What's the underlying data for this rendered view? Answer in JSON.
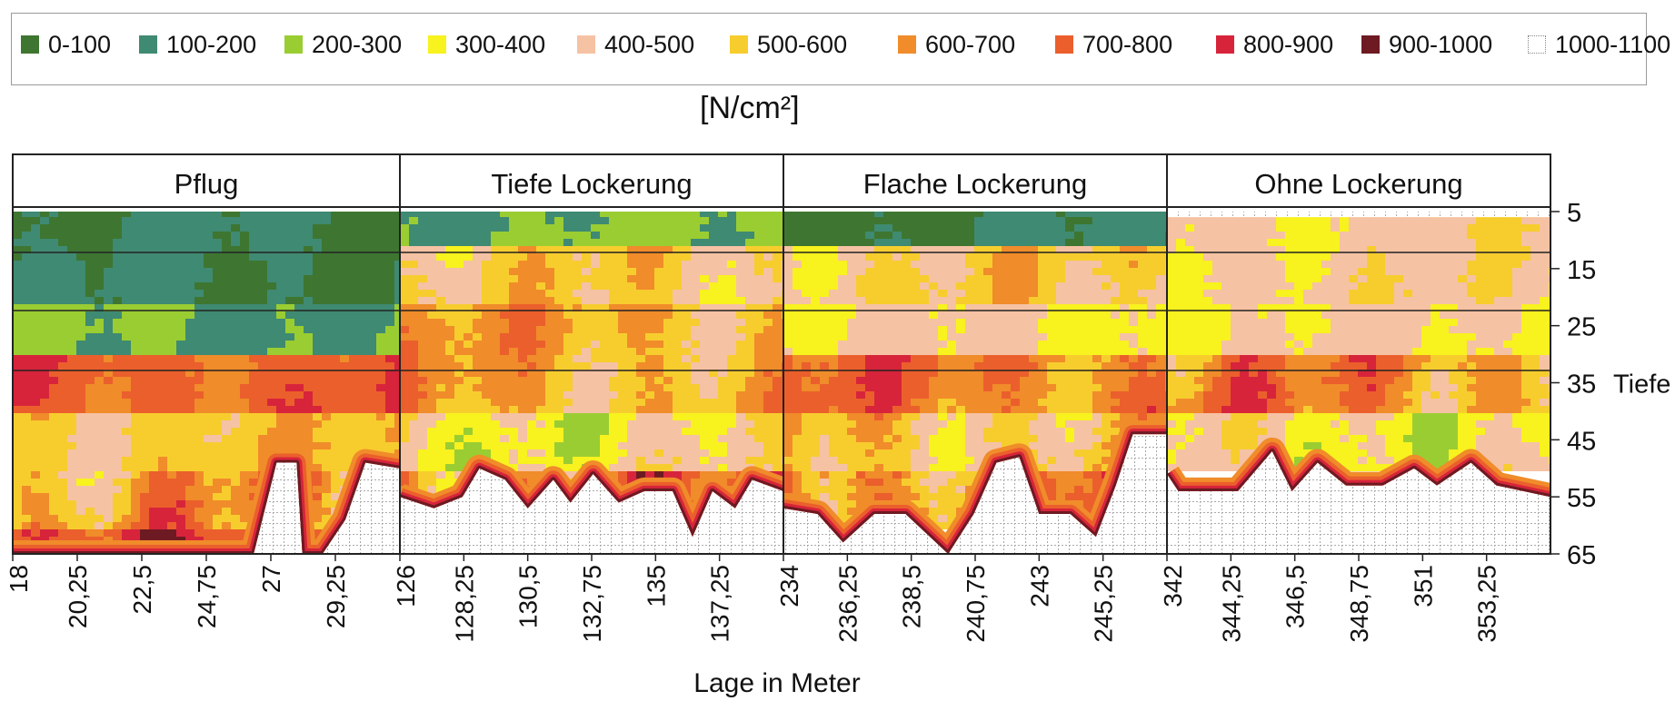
{
  "legend": {
    "title": "[N/cm²]",
    "items": [
      {
        "label": "0-100",
        "color": "#3e7631"
      },
      {
        "label": "100-200",
        "color": "#3f8a72"
      },
      {
        "label": "200-300",
        "color": "#9acd32"
      },
      {
        "label": "300-400",
        "color": "#f8f21e"
      },
      {
        "label": "400-500",
        "color": "#f6c2a4"
      },
      {
        "label": "500-600",
        "color": "#f7cd2e"
      },
      {
        "label": "600-700",
        "color": "#f08c2a"
      },
      {
        "label": "700-800",
        "color": "#eb5f2c"
      },
      {
        "label": "800-900",
        "color": "#d7243b"
      },
      {
        "label": "900-1000",
        "color": "#6e1a22"
      },
      {
        "label": "1000-1100",
        "color": "#ffffff"
      }
    ]
  },
  "chart_data": {
    "type": "heatmap",
    "title": "",
    "xlabel": "Lage in Meter",
    "ylabel": "Tiefe",
    "y_ticks": [
      "5",
      "15",
      "25",
      "35",
      "45",
      "55",
      "65"
    ],
    "sections": [
      {
        "name": "Pflug",
        "x_labels": [
          "18",
          "20,25",
          "22,5",
          "24,75",
          "27",
          "29,25"
        ],
        "x_range": [
          18,
          31.5
        ],
        "surface": [
          {
            "x": 18,
            "depth": 5
          },
          {
            "x": 31.5,
            "depth": 5
          }
        ],
        "soil_bottom": [
          {
            "x": 18,
            "depth": 65
          },
          {
            "x": 26.4,
            "depth": 65
          },
          {
            "x": 27.2,
            "depth": 49
          },
          {
            "x": 27.9,
            "depth": 49
          },
          {
            "x": 28.1,
            "depth": 65
          },
          {
            "x": 28.8,
            "depth": 65
          },
          {
            "x": 29.6,
            "depth": 59
          },
          {
            "x": 30.3,
            "depth": 49
          },
          {
            "x": 31.5,
            "depth": 50
          }
        ]
      },
      {
        "name": "Tiefe Lockerung",
        "x_labels": [
          "126",
          "128,25",
          "130,5",
          "132,75",
          "135",
          "137,25"
        ],
        "x_range": [
          126,
          139.5
        ],
        "surface": [
          {
            "x": 126,
            "depth": 5
          },
          {
            "x": 139.5,
            "depth": 5
          }
        ],
        "soil_bottom": [
          {
            "x": 126,
            "depth": 55
          },
          {
            "x": 127.2,
            "depth": 57
          },
          {
            "x": 128.2,
            "depth": 55
          },
          {
            "x": 128.8,
            "depth": 50
          },
          {
            "x": 129.7,
            "depth": 52
          },
          {
            "x": 130.5,
            "depth": 57
          },
          {
            "x": 131.4,
            "depth": 52
          },
          {
            "x": 132,
            "depth": 56
          },
          {
            "x": 132.8,
            "depth": 51
          },
          {
            "x": 133.7,
            "depth": 56
          },
          {
            "x": 134.6,
            "depth": 54
          },
          {
            "x": 135.6,
            "depth": 54
          },
          {
            "x": 136.3,
            "depth": 62
          },
          {
            "x": 137,
            "depth": 54
          },
          {
            "x": 137.8,
            "depth": 57
          },
          {
            "x": 138.4,
            "depth": 52
          },
          {
            "x": 139.5,
            "depth": 54
          }
        ]
      },
      {
        "name": "Flache Lockerung",
        "x_labels": [
          "234",
          "236,25",
          "238,5",
          "240,75",
          "243",
          "245,25"
        ],
        "x_range": [
          234,
          247.5
        ],
        "surface": [
          {
            "x": 234,
            "depth": 5
          },
          {
            "x": 247.5,
            "depth": 5
          }
        ],
        "soil_bottom": [
          {
            "x": 234,
            "depth": 57
          },
          {
            "x": 235.2,
            "depth": 58
          },
          {
            "x": 236.1,
            "depth": 63
          },
          {
            "x": 237.2,
            "depth": 58
          },
          {
            "x": 238.3,
            "depth": 58
          },
          {
            "x": 239.8,
            "depth": 65
          },
          {
            "x": 240.7,
            "depth": 58
          },
          {
            "x": 241.5,
            "depth": 49
          },
          {
            "x": 242.3,
            "depth": 48
          },
          {
            "x": 243,
            "depth": 58
          },
          {
            "x": 244.1,
            "depth": 58
          },
          {
            "x": 245,
            "depth": 62
          },
          {
            "x": 245.7,
            "depth": 53
          },
          {
            "x": 246.3,
            "depth": 44
          },
          {
            "x": 247.5,
            "depth": 44
          }
        ]
      },
      {
        "name": "Ohne Lockerung",
        "x_labels": [
          "342",
          "344,25",
          "346,5",
          "348,75",
          "351",
          "353,25"
        ],
        "x_range": [
          342,
          355.5
        ],
        "surface": [
          {
            "x": 342,
            "depth": 6
          },
          {
            "x": 355.5,
            "depth": 6
          }
        ],
        "soil_bottom": [
          {
            "x": 342,
            "depth": 51
          },
          {
            "x": 342.4,
            "depth": 54
          },
          {
            "x": 344.5,
            "depth": 54
          },
          {
            "x": 345.7,
            "depth": 47
          },
          {
            "x": 346.4,
            "depth": 54
          },
          {
            "x": 347.3,
            "depth": 49
          },
          {
            "x": 348.3,
            "depth": 53
          },
          {
            "x": 349.6,
            "depth": 53
          },
          {
            "x": 350.7,
            "depth": 50
          },
          {
            "x": 351.5,
            "depth": 53
          },
          {
            "x": 352.7,
            "depth": 49
          },
          {
            "x": 353.6,
            "depth": 53
          },
          {
            "x": 355.5,
            "depth": 55
          }
        ]
      }
    ],
    "pressure_profile_by_depth": [
      {
        "depth": 5,
        "Pflug": "0-200",
        "Tiefe Lockerung": "100-300",
        "Flache Lockerung": "0-200",
        "Ohne Lockerung": "300-600"
      },
      {
        "depth": 15,
        "Pflug": "0-200",
        "Tiefe Lockerung": "300-700",
        "Flache Lockerung": "300-700",
        "Ohne Lockerung": "300-600"
      },
      {
        "depth": 25,
        "Pflug": "100-300",
        "Tiefe Lockerung": "400-800",
        "Flache Lockerung": "300-500",
        "Ohne Lockerung": "300-500"
      },
      {
        "depth": 35,
        "Pflug": "600-900",
        "Tiefe Lockerung": "400-800",
        "Flache Lockerung": "500-900",
        "Ohne Lockerung": "400-900"
      },
      {
        "depth": 45,
        "Pflug": "400-700",
        "Tiefe Lockerung": "200-600",
        "Flache Lockerung": "300-800",
        "Ohne Lockerung": "200-600"
      },
      {
        "depth": 55,
        "Pflug": "300-900",
        "Tiefe Lockerung": "300-1000",
        "Flache Lockerung": "400-1000",
        "Ohne Lockerung": "1000-1100"
      },
      {
        "depth": 65,
        "Pflug": "500-1000",
        "Tiefe Lockerung": "1000-1100",
        "Flache Lockerung": "1000-1100",
        "Ohne Lockerung": "1000-1100"
      }
    ],
    "grid": true
  }
}
